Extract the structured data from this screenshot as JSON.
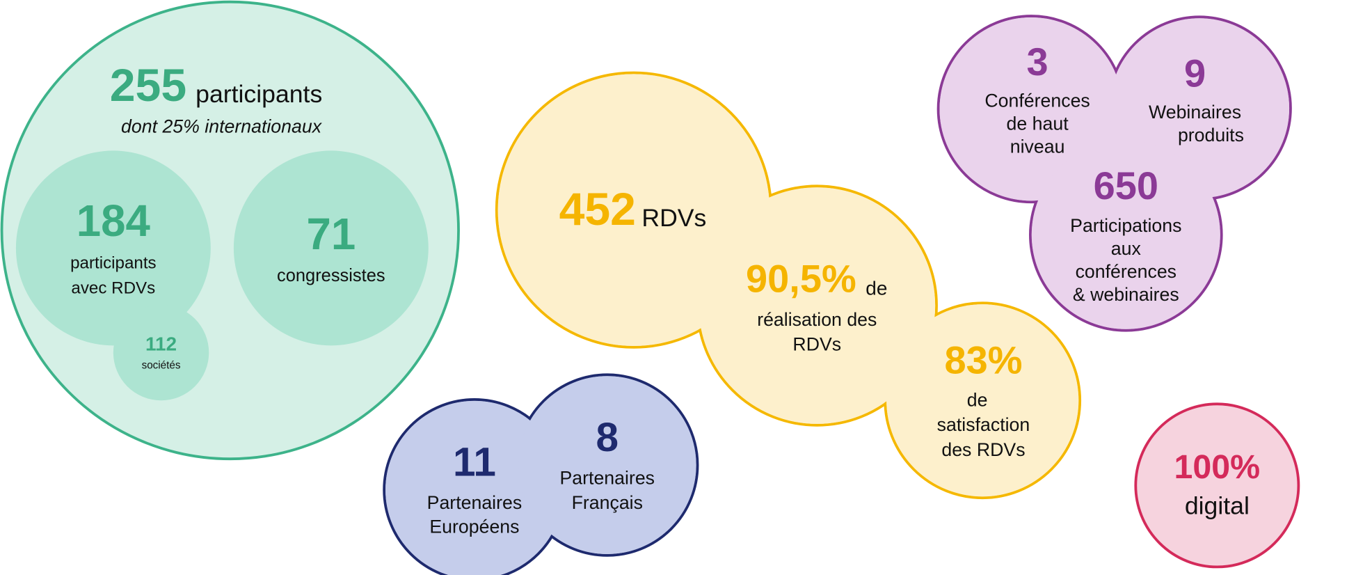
{
  "participants": {
    "number": "255",
    "label": "participants",
    "subtitle": "dont 25% internationaux",
    "with_meetings": {
      "number": "184",
      "lines": [
        "participants",
        "avec RDVs"
      ]
    },
    "congress": {
      "number": "71",
      "lines": [
        "congressistes"
      ]
    },
    "companies": {
      "number": "112",
      "lines": [
        "sociétés"
      ]
    }
  },
  "meetings": {
    "count": {
      "number": "452",
      "label": "RDVs"
    },
    "completion": {
      "number": "90,5%",
      "label": "de",
      "lines": [
        "réalisation des",
        "RDVs"
      ]
    },
    "satisfaction": {
      "number": "83%",
      "lines": [
        "de",
        "satisfaction",
        "des RDVs"
      ]
    }
  },
  "conferences": {
    "high_level": {
      "number": "3",
      "lines": [
        "Conférences",
        "de haut",
        "niveau"
      ]
    },
    "webinars": {
      "number": "9",
      "lines": [
        "Webinaires",
        "produits"
      ]
    },
    "attendance": {
      "number": "650",
      "lines": [
        "Participations",
        "aux",
        "conférences",
        "& webinaires"
      ]
    }
  },
  "partners": {
    "european": {
      "number": "11",
      "lines": [
        "Partenaires",
        "Européens"
      ]
    },
    "french": {
      "number": "8",
      "lines": [
        "Partenaires",
        "Français"
      ]
    }
  },
  "digital": {
    "number": "100%",
    "label": "digital"
  }
}
